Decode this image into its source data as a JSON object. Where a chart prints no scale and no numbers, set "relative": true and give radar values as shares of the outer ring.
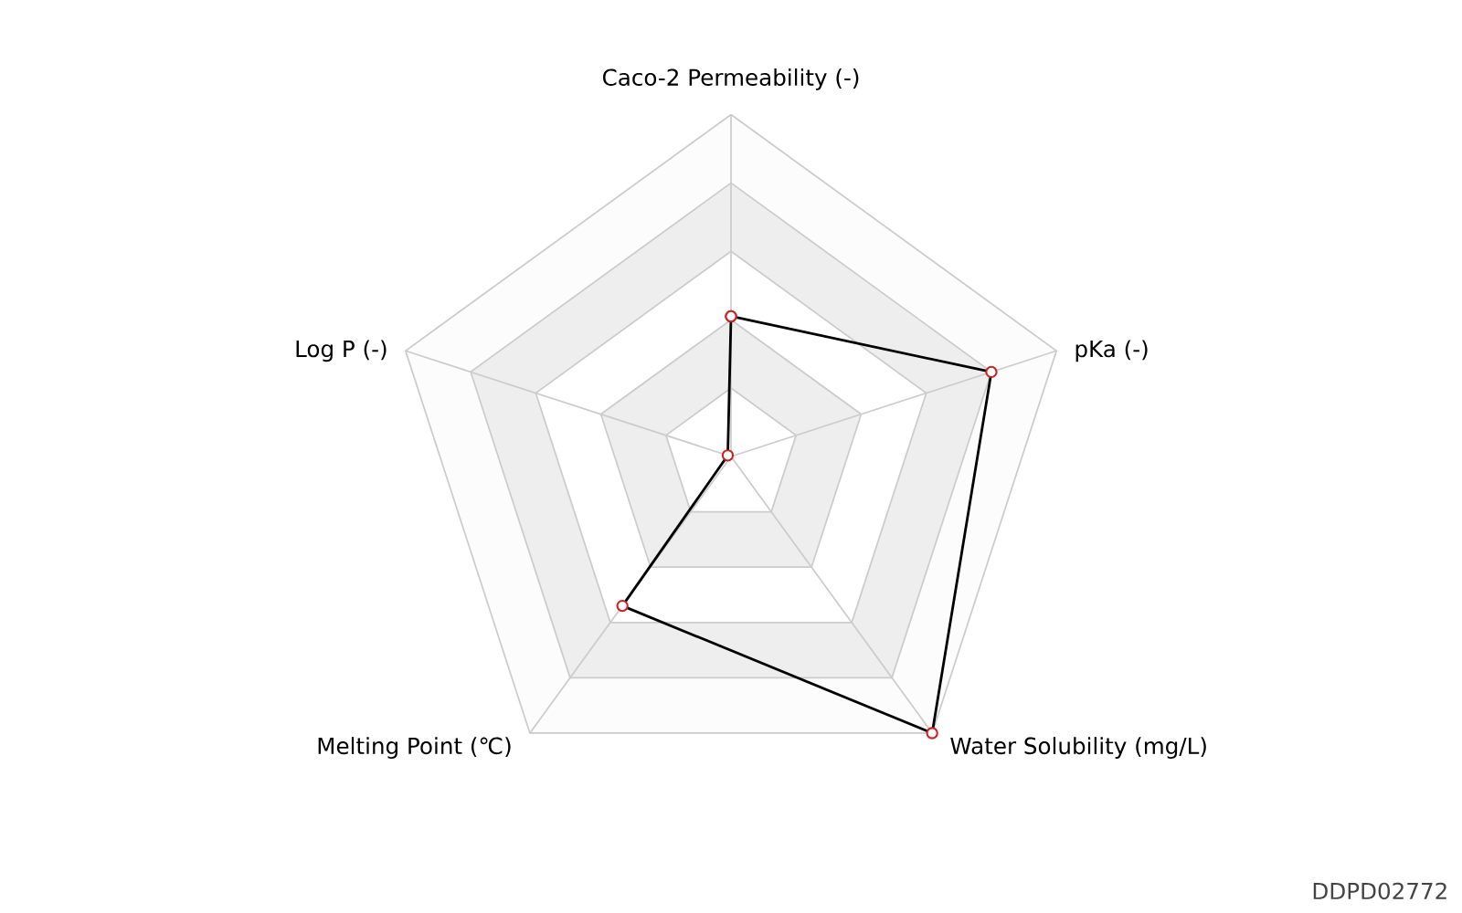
{
  "chart_data": {
    "type": "radar",
    "relative": true,
    "grid": true,
    "marker": "circle",
    "categories": [
      "Caco-2 Permeability (-)",
      "pKa (-)",
      "Water Solubility (mg/L)",
      "Melting Point (℃)",
      "Log P (-)"
    ],
    "series": [
      {
        "color": "#000000",
        "values": [
          0.41,
          0.8,
          1.0,
          0.54,
          0.01
        ]
      }
    ],
    "annotations": [
      "DDPD02772"
    ]
  }
}
